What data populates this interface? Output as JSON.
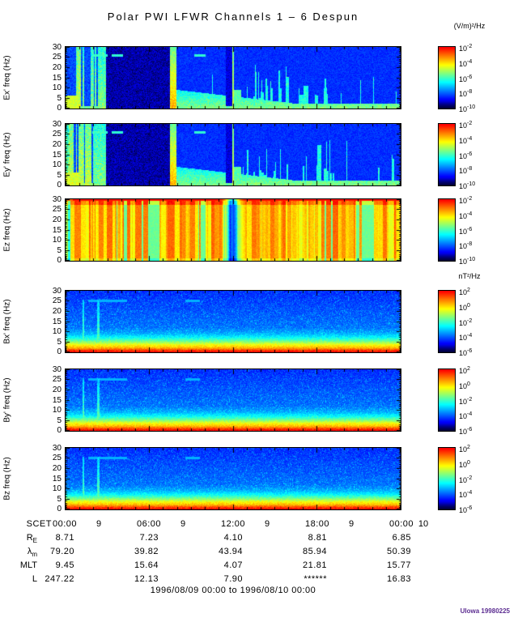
{
  "chart_data": {
    "type": "heatmap",
    "title": "Polar PWI LFWR Channels 1 – 6 Despun",
    "footer": "1996/08/09 00:00 to 1996/08/10 00:00",
    "credit": "UIowa 19980225",
    "colors": {
      "credit": "#5c2d91",
      "background": "#ffffff"
    },
    "x_axis": {
      "label": "SCET",
      "range_hours": [
        0,
        24
      ],
      "minor_tick_hours": 1,
      "major_ticks": [
        {
          "time": "00:00",
          "day": "9"
        },
        {
          "time": "06:00",
          "day": "9"
        },
        {
          "time": "12:00",
          "day": "9"
        },
        {
          "time": "18:00",
          "day": "9"
        },
        {
          "time": "00:00",
          "day": "10"
        }
      ]
    },
    "y_axis": {
      "range_hz": [
        0,
        30
      ],
      "ticks": [
        0,
        5,
        10,
        15,
        20,
        25,
        30
      ]
    },
    "panels": [
      {
        "key": "ex",
        "ylabel": "Ex' freq (Hz)",
        "quantity": "electric",
        "pattern": "E",
        "seed": 11,
        "features": [
          "broadband bursts 00:00-03:00",
          "emission dropout ~03:00-07:30",
          "intense burst ~07:45",
          "narrow burst ~12:00",
          "intermittent bursts 13:00-19:30",
          "low-frequency band below 2 Hz"
        ]
      },
      {
        "key": "ey",
        "ylabel": "Ey' freq (Hz)",
        "quantity": "electric",
        "pattern": "E",
        "seed": 23,
        "features": [
          "broadband bursts 00:00-03:00",
          "emission dropout ~03:00-07:30",
          "intense burst ~07:45",
          "narrow burst ~12:00",
          "intermittent bursts 13:00-19:30",
          "low-frequency band below 2 Hz"
        ]
      },
      {
        "key": "ez",
        "ylabel": "Ez freq (Hz)",
        "quantity": "electric",
        "pattern": "Ez",
        "seed": 37,
        "features": [
          "continuous intense broadband emission",
          "vertical striping",
          "deep dropout ~12:00",
          "enhanced band near 30 Hz"
        ]
      },
      {
        "key": "bx",
        "ylabel": "Bx' freq (Hz)",
        "quantity": "magnetic",
        "pattern": "B",
        "seed": 41,
        "features": [
          "intense low-frequency band below ~8 Hz",
          "red line at 0 Hz",
          "narrow spikes ~01:15 and ~02:20",
          "faint line near 25 Hz"
        ]
      },
      {
        "key": "by",
        "ylabel": "By' freq (Hz)",
        "quantity": "magnetic",
        "pattern": "B",
        "seed": 53,
        "features": [
          "intense low-frequency band below ~8 Hz",
          "red line at 0 Hz",
          "narrow spikes ~01:15 and ~02:20"
        ]
      },
      {
        "key": "bz",
        "ylabel": "Bz freq (Hz)",
        "quantity": "magnetic",
        "pattern": "B",
        "seed": 67,
        "features": [
          "intense low-frequency band below ~8 Hz",
          "red line at 0 Hz",
          "narrow spikes ~01:15 and ~02:20"
        ]
      }
    ],
    "colorbars": {
      "electric": {
        "unit": "(V/m)²/Hz",
        "tick_exponents": [
          -2,
          -4,
          -6,
          -8,
          -10
        ]
      },
      "magnetic": {
        "unit": "nT²/Hz",
        "tick_exponents": [
          2,
          0,
          -2,
          -4,
          -6
        ]
      }
    },
    "ephemeris": {
      "rows": [
        {
          "key": "re",
          "label": "R",
          "sub": "E",
          "values": [
            "8.71",
            "7.23",
            "4.10",
            "8.81",
            "6.85"
          ]
        },
        {
          "key": "lambda-m",
          "label": "λ",
          "sub": "m",
          "values": [
            "79.20",
            "39.82",
            "43.94",
            "85.94",
            "50.39"
          ]
        },
        {
          "key": "mlt",
          "label": "MLT",
          "sub": "",
          "values": [
            "9.45",
            "15.64",
            "4.07",
            "21.81",
            "15.77"
          ]
        },
        {
          "key": "l",
          "label": "L",
          "sub": "",
          "values": [
            "247.22",
            "12.13",
            "7.90",
            "******",
            "16.83"
          ]
        }
      ]
    }
  }
}
